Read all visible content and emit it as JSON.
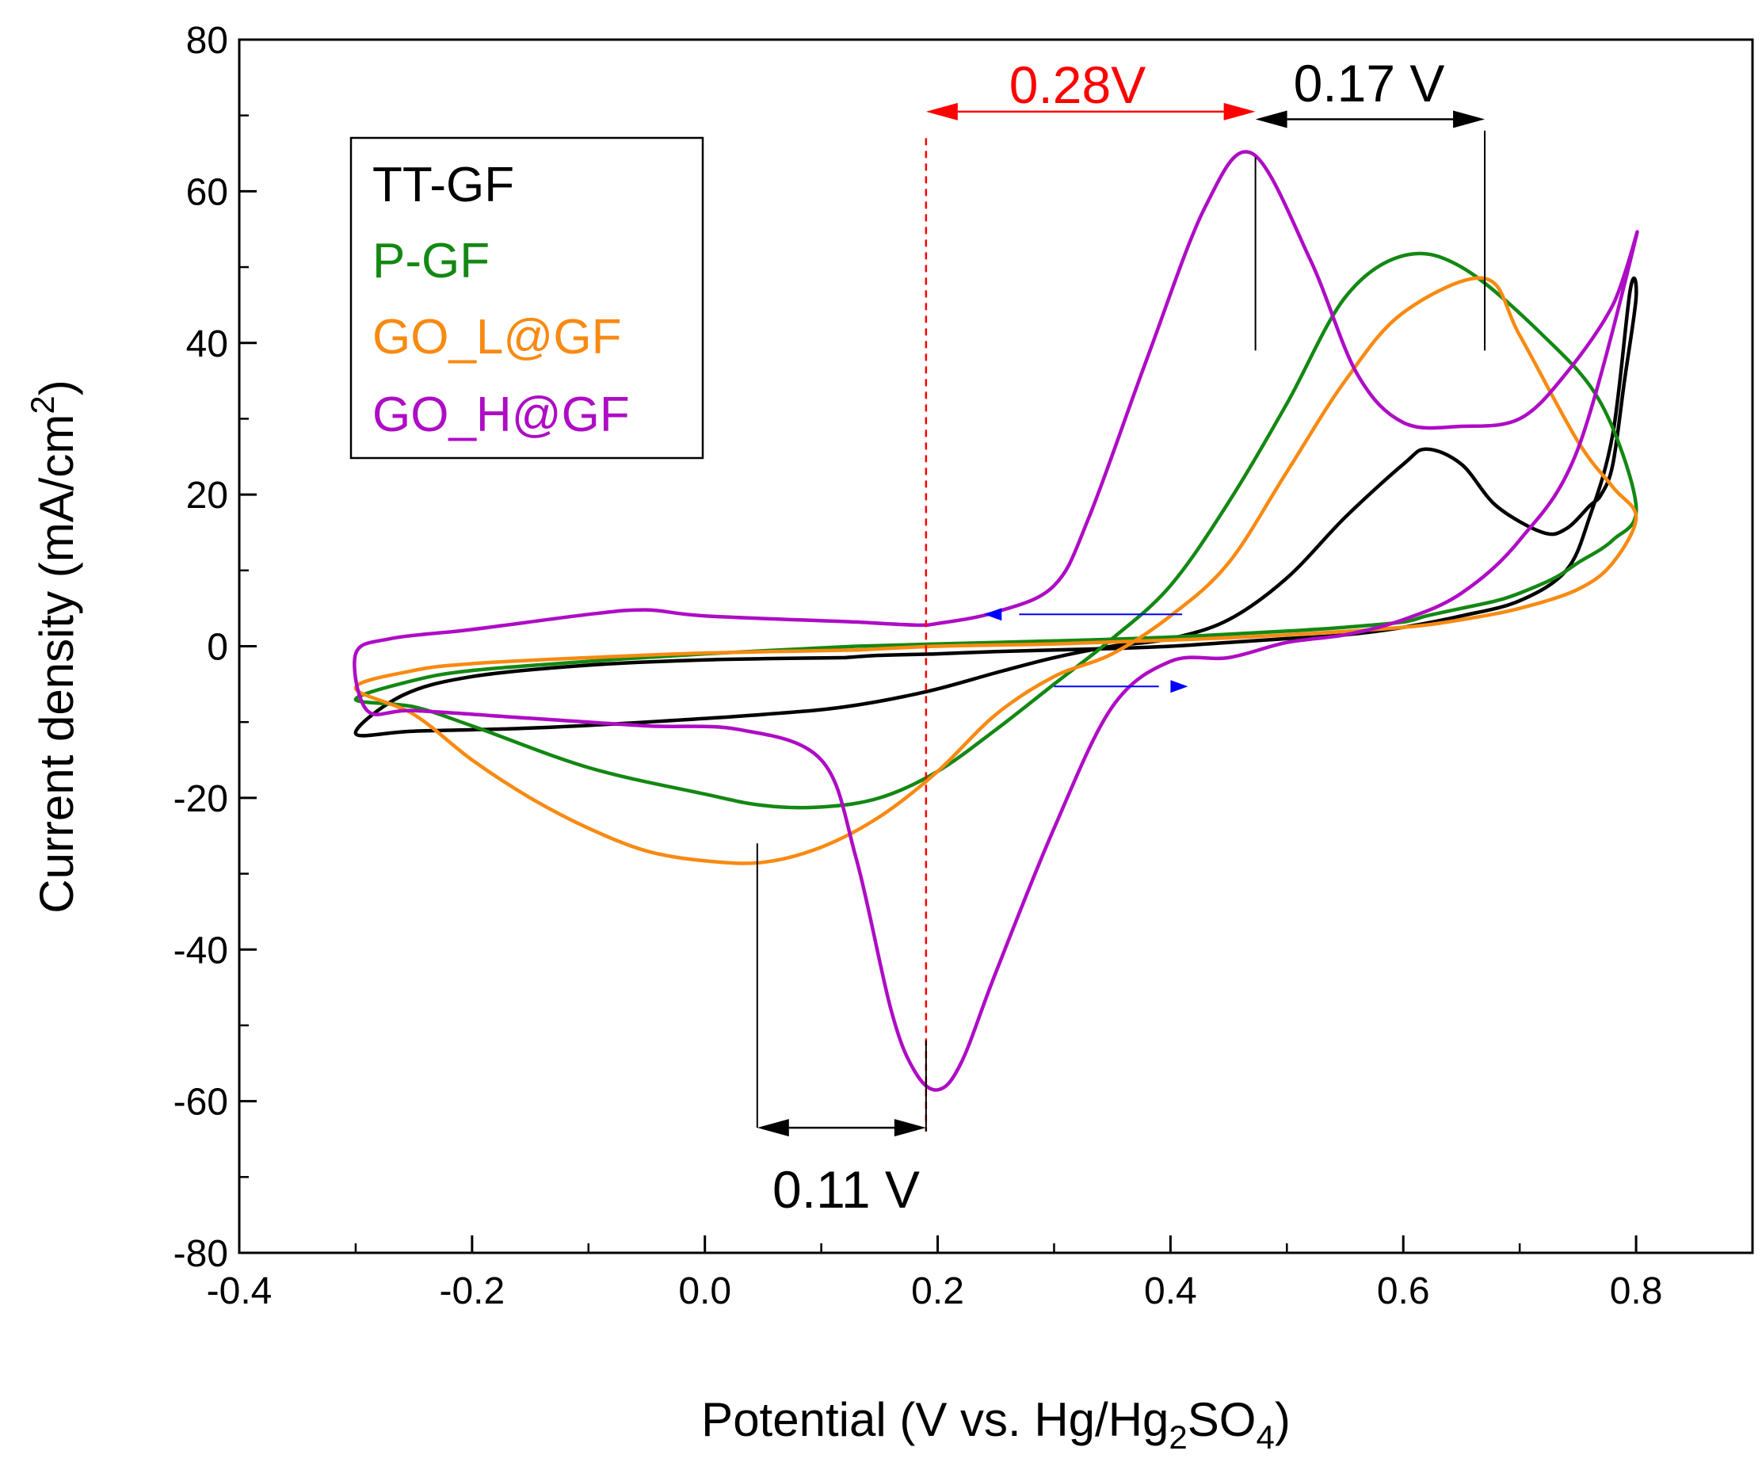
{
  "chart_data": {
    "type": "line",
    "title": "",
    "xlabel": {
      "main": "Potential (V vs. Hg/Hg",
      "sub1": "2",
      "mid": "SO",
      "sub2": "4",
      "end": ")"
    },
    "ylabel": {
      "main": "Current density (mA/cm",
      "sup": "2",
      "end": ")"
    },
    "xlim": [
      -0.4,
      0.9
    ],
    "ylim": [
      -80,
      80
    ],
    "xticks": [
      -0.4,
      -0.2,
      0.0,
      0.2,
      0.4,
      0.6,
      0.8
    ],
    "xtick_labels": [
      "-0.4",
      "-0.2",
      "0.0",
      "0.2",
      "0.4",
      "0.6",
      "0.8"
    ],
    "yticks": [
      -80,
      -60,
      -40,
      -20,
      0,
      20,
      40,
      60,
      80
    ],
    "ytick_labels": [
      "-80",
      "-60",
      "-40",
      "-20",
      "0",
      "20",
      "40",
      "60",
      "80"
    ],
    "grid": false,
    "legend_position": "top-left",
    "series": [
      {
        "name": "TT-GF",
        "color": "#000000",
        "x": [
          0.12,
          0.0,
          -0.1,
          -0.2,
          -0.26,
          -0.3,
          -0.25,
          -0.15,
          -0.05,
          0.05,
          0.12,
          0.19,
          0.25,
          0.3,
          0.35,
          0.4,
          0.45,
          0.5,
          0.55,
          0.6,
          0.62,
          0.65,
          0.68,
          0.72,
          0.74,
          0.76,
          0.77,
          0.78,
          0.79,
          0.8,
          0.795,
          0.78,
          0.76,
          0.74,
          0.7,
          0.65,
          0.6,
          0.55,
          0.5,
          0.45,
          0.4,
          0.35,
          0.3,
          0.25,
          0.2,
          0.15,
          0.12
        ],
        "y": [
          -1.5,
          -1.8,
          -2.5,
          -4,
          -6.5,
          -11.5,
          -11.2,
          -10.8,
          -10,
          -9,
          -8,
          -6,
          -3.5,
          -1.5,
          0,
          1,
          3.5,
          9,
          17,
          24,
          26,
          24,
          18.5,
          15,
          15.5,
          18.5,
          20,
          24,
          35,
          46,
          47,
          28,
          17,
          10,
          6,
          4,
          2.5,
          1.5,
          1,
          0.5,
          0,
          -0.3,
          -0.5,
          -0.7,
          -1,
          -1.2,
          -1.5
        ]
      },
      {
        "name": "P-GF",
        "color": "#138813",
        "x": [
          0.13,
          0.2,
          0.3,
          0.4,
          0.5,
          0.55,
          0.6,
          0.62,
          0.65,
          0.68,
          0.7,
          0.73,
          0.75,
          0.78,
          0.8,
          0.77,
          0.72,
          0.65,
          0.6,
          0.55,
          0.5,
          0.45,
          0.4,
          0.35,
          0.3,
          0.25,
          0.2,
          0.15,
          0.1,
          0.05,
          0.0,
          -0.1,
          -0.2,
          -0.25,
          -0.3,
          -0.25,
          -0.2,
          -0.1,
          0.0,
          0.13
        ],
        "y": [
          0,
          0.3,
          0.7,
          1.2,
          2,
          2.5,
          3.2,
          4,
          5,
          6,
          7,
          9,
          11,
          14,
          18.5,
          32,
          41,
          50,
          51.5,
          46,
          32,
          19,
          8,
          1,
          -5,
          -11,
          -16.5,
          -20,
          -21.2,
          -21,
          -19.5,
          -16,
          -10.5,
          -8,
          -7,
          -4.5,
          -3.2,
          -2,
          -1,
          0
        ]
      },
      {
        "name": "GO_L@GF",
        "color": "#f88a12",
        "x": [
          0.13,
          0.2,
          0.3,
          0.4,
          0.5,
          0.6,
          0.65,
          0.7,
          0.75,
          0.78,
          0.8,
          0.78,
          0.75,
          0.7,
          0.67,
          0.6,
          0.55,
          0.5,
          0.45,
          0.4,
          0.35,
          0.3,
          0.25,
          0.2,
          0.15,
          0.1,
          0.05,
          0.0,
          -0.05,
          -0.1,
          -0.15,
          -0.2,
          -0.25,
          -0.3,
          -0.25,
          -0.2,
          -0.1,
          0.0,
          0.13
        ],
        "y": [
          -0.5,
          0,
          0.3,
          0.8,
          1.5,
          2.5,
          3.5,
          5,
          7.5,
          11,
          17,
          21,
          27,
          41,
          48.5,
          44,
          35,
          23,
          11,
          4,
          -1,
          -4,
          -9,
          -16.5,
          -22.5,
          -26.5,
          -28.5,
          -28.3,
          -27,
          -24,
          -20,
          -15,
          -9,
          -5.5,
          -3.2,
          -2.3,
          -1.5,
          -0.9,
          -0.5
        ]
      },
      {
        "name": "GO_H@GF",
        "color": "#ae0cc5",
        "x": [
          0.13,
          0.0,
          -0.05,
          -0.1,
          -0.2,
          -0.27,
          -0.3,
          -0.29,
          -0.25,
          -0.15,
          -0.05,
          0.03,
          0.1,
          0.13,
          0.16,
          0.18,
          0.2,
          0.22,
          0.25,
          0.3,
          0.35,
          0.4,
          0.45,
          0.5,
          0.55,
          0.6,
          0.65,
          0.7,
          0.75,
          0.8,
          0.78,
          0.74,
          0.7,
          0.65,
          0.6,
          0.56,
          0.52,
          0.47,
          0.43,
          0.38,
          0.33,
          0.3,
          0.25,
          0.2,
          0.18,
          0.13
        ],
        "y": [
          3.2,
          4,
          4.8,
          4.2,
          2.2,
          1,
          -1,
          -8.5,
          -8.5,
          -9.5,
          -10.5,
          -11,
          -15,
          -28,
          -48,
          -56,
          -58.5,
          -55,
          -43,
          -24,
          -8,
          -2,
          -1.5,
          0.5,
          1.5,
          3.5,
          7,
          14,
          26,
          54,
          45,
          36,
          30,
          29,
          29.5,
          36,
          51,
          65,
          58,
          38,
          17,
          8,
          4.5,
          3,
          2.8,
          3.2
        ]
      }
    ],
    "annotations": [
      {
        "text": "0.28V",
        "color": "#ff0000"
      },
      {
        "text": "0.17 V",
        "color": "#000000"
      },
      {
        "text": "0.11 V",
        "color": "#000000"
      }
    ],
    "scan_direction_arrows": [
      "reverse scan (upper branch)",
      "forward scan (lower branch)"
    ],
    "reference_line_x": 0.19,
    "peak_markers": {
      "go_h_anodic_x": 0.473,
      "p_gf_anodic_x": 0.67,
      "go_l_cathodic_x": 0.045,
      "go_h_cathodic_x": 0.19
    }
  }
}
